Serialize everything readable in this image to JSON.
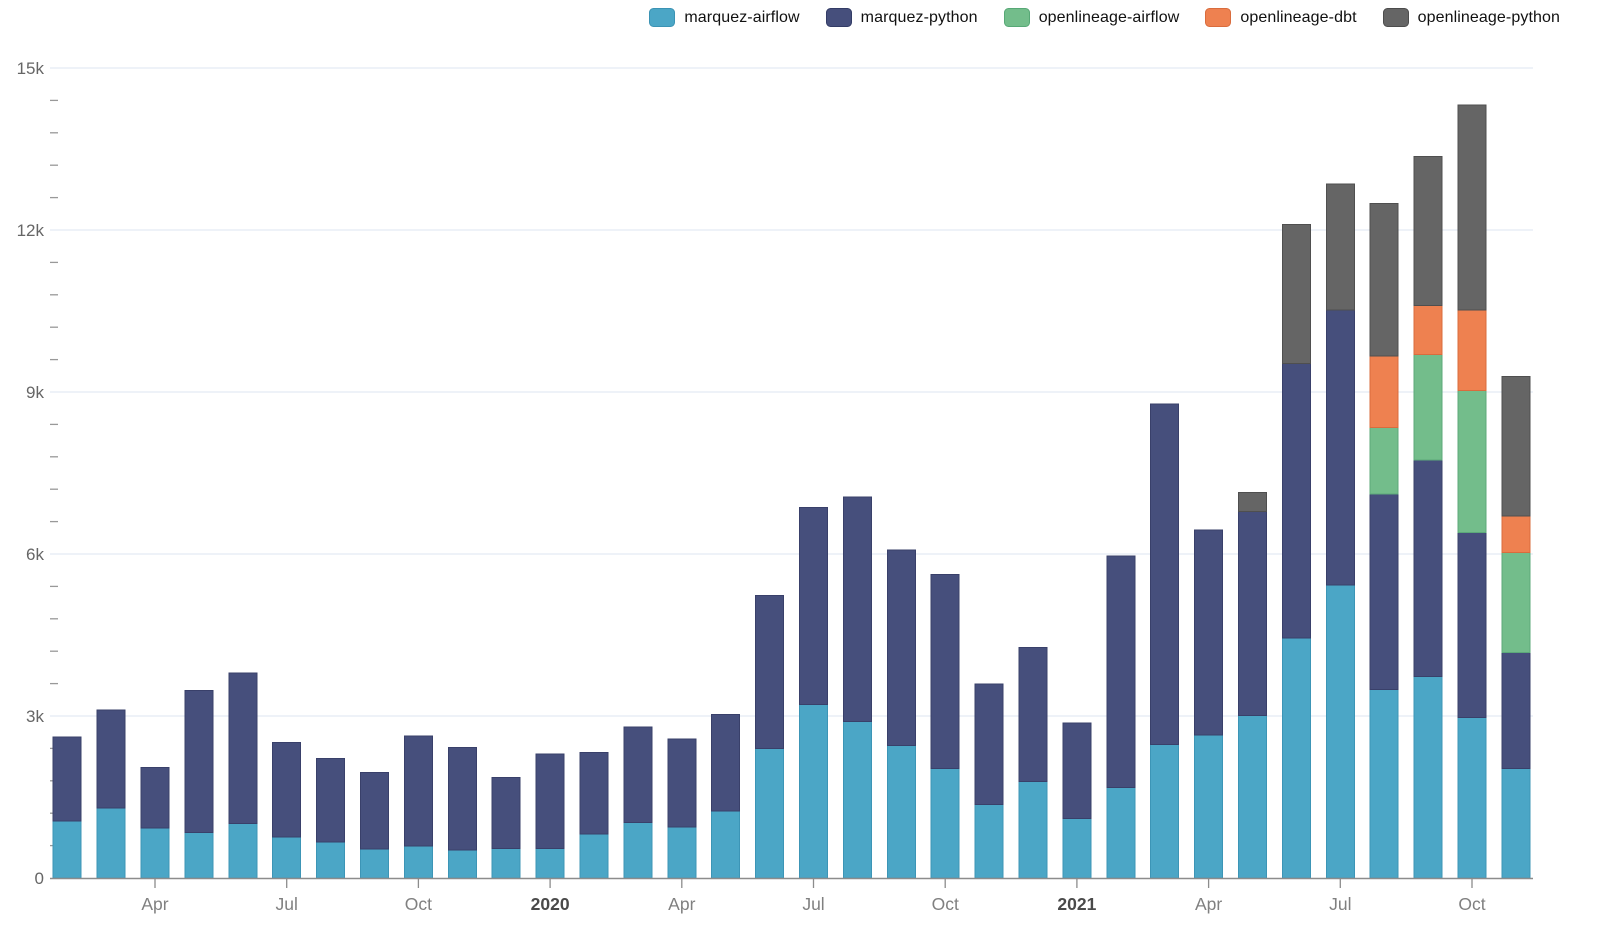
{
  "page": {
    "background": "#ffffff"
  },
  "legend": {
    "position": "top-right",
    "items": [
      {
        "label": "marquez-airflow",
        "color": "#4BA6C6",
        "border": "#3B93B4"
      },
      {
        "label": "marquez-python",
        "color": "#464F7C",
        "border": "#333C66"
      },
      {
        "label": "openlineage-airflow",
        "color": "#73BD8B",
        "border": "#57A876"
      },
      {
        "label": "openlineage-dbt",
        "color": "#EE8150",
        "border": "#D96C3D"
      },
      {
        "label": "openlineage-python",
        "color": "#656565",
        "border": "#4C4C4C"
      }
    ]
  },
  "chart_data": {
    "type": "bar",
    "stacked": true,
    "title": "",
    "xlabel": "",
    "ylabel": "",
    "grid": "horizontal-major",
    "legend_position": "top-right",
    "ylim": [
      0,
      15000
    ],
    "y_ticks": {
      "major_step": 3000,
      "minor_step": 600,
      "labels": [
        "0",
        "3k",
        "6k",
        "9k",
        "12k",
        "15k"
      ]
    },
    "x": [
      "2019-02",
      "2019-03",
      "2019-04",
      "2019-05",
      "2019-06",
      "2019-07",
      "2019-08",
      "2019-09",
      "2019-10",
      "2019-11",
      "2019-12",
      "2020-01",
      "2020-02",
      "2020-03",
      "2020-04",
      "2020-05",
      "2020-06",
      "2020-07",
      "2020-08",
      "2020-09",
      "2020-10",
      "2020-11",
      "2020-12",
      "2021-01",
      "2021-02",
      "2021-03",
      "2021-04",
      "2021-05",
      "2021-06",
      "2021-07",
      "2021-08",
      "2021-09",
      "2021-10",
      "2021-11"
    ],
    "x_ticks": {
      "indices": [
        2,
        5,
        8,
        11,
        14,
        17,
        20,
        23,
        26,
        29,
        32
      ],
      "labels": [
        "Apr",
        "Jul",
        "Oct",
        "2020",
        "Apr",
        "Jul",
        "Oct",
        "2021",
        "Apr",
        "Jul",
        "Oct"
      ],
      "emphasis": [
        false,
        false,
        false,
        true,
        false,
        false,
        false,
        true,
        false,
        false,
        false
      ]
    },
    "series": [
      {
        "name": "marquez-airflow",
        "color": "#4BA6C6",
        "stroke": "#3C95B6",
        "values": [
          1055,
          1300,
          930,
          845,
          1010,
          755,
          670,
          535,
          590,
          520,
          550,
          550,
          815,
          1025,
          940,
          1240,
          2400,
          3215,
          2895,
          2455,
          2030,
          1365,
          1790,
          1100,
          1675,
          2475,
          2650,
          3005,
          4440,
          5425,
          3495,
          3730,
          2970,
          2030
        ]
      },
      {
        "name": "marquez-python",
        "color": "#464F7C",
        "stroke": "#39406A",
        "values": [
          1555,
          1810,
          1120,
          2630,
          2790,
          1750,
          1545,
          1415,
          2040,
          1900,
          1310,
          1750,
          1505,
          1775,
          1630,
          1790,
          2835,
          3645,
          4165,
          3620,
          3595,
          2230,
          2480,
          1775,
          4285,
          6300,
          3795,
          3780,
          5085,
          5095,
          3615,
          4010,
          3430,
          2145
        ]
      },
      {
        "name": "openlineage-airflow",
        "color": "#73BD8B",
        "stroke": "#5CA97A",
        "values": [
          0,
          0,
          0,
          0,
          0,
          0,
          0,
          0,
          0,
          0,
          0,
          0,
          0,
          0,
          0,
          0,
          0,
          0,
          0,
          0,
          0,
          0,
          0,
          0,
          0,
          0,
          0,
          0,
          0,
          0,
          1235,
          1950,
          2625,
          1850
        ]
      },
      {
        "name": "openlineage-dbt",
        "color": "#EE8150",
        "stroke": "#D96C3D",
        "values": [
          0,
          0,
          0,
          0,
          0,
          0,
          0,
          0,
          0,
          0,
          0,
          0,
          0,
          0,
          0,
          0,
          0,
          0,
          0,
          0,
          0,
          0,
          0,
          0,
          0,
          0,
          0,
          0,
          0,
          0,
          1325,
          910,
          1495,
          680
        ]
      },
      {
        "name": "openlineage-python",
        "color": "#656565",
        "stroke": "#4F4F4F",
        "values": [
          0,
          0,
          0,
          0,
          0,
          0,
          0,
          0,
          0,
          0,
          0,
          0,
          0,
          0,
          0,
          0,
          0,
          0,
          0,
          0,
          0,
          0,
          0,
          0,
          0,
          0,
          0,
          350,
          2580,
          2335,
          2820,
          2760,
          3795,
          2580
        ]
      }
    ]
  }
}
